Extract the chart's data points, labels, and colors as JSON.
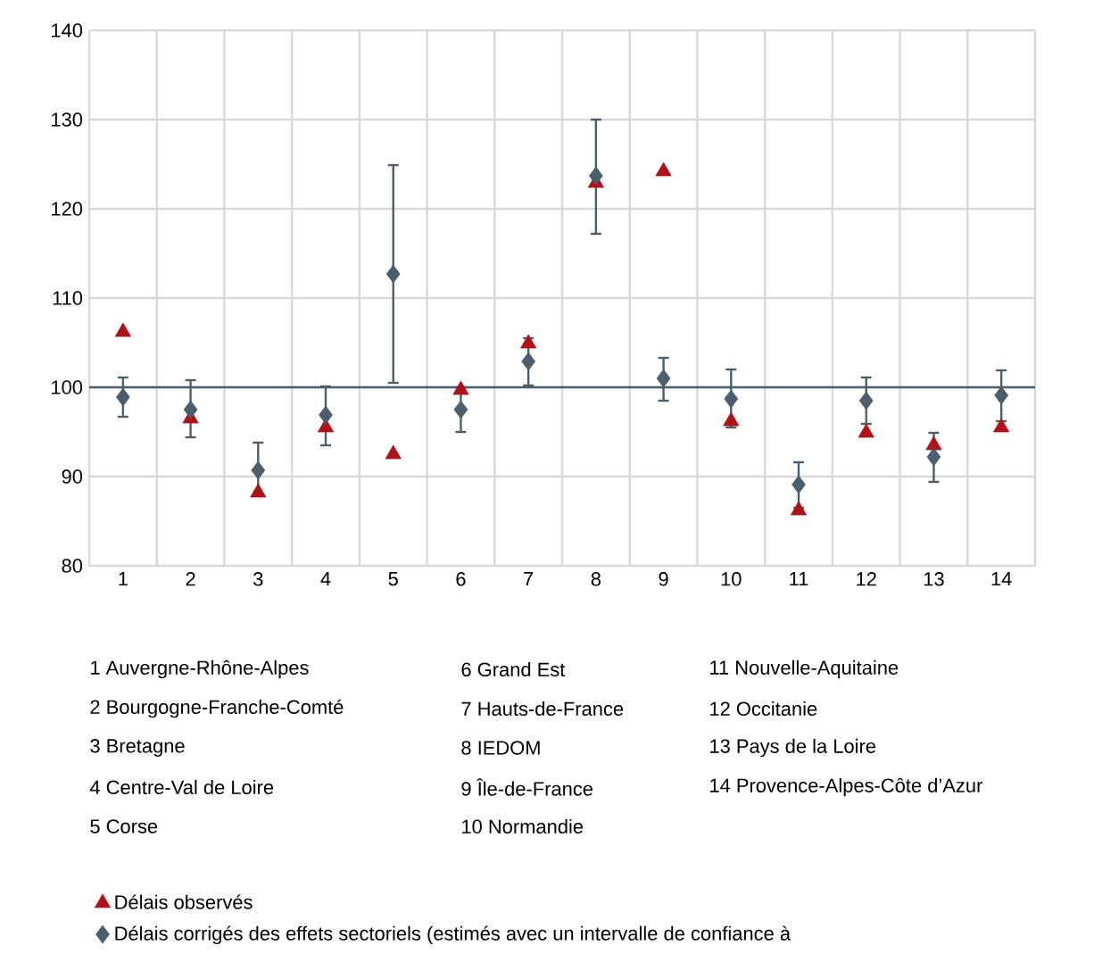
{
  "chart_data": {
    "type": "scatter",
    "categories": [
      "1",
      "2",
      "3",
      "4",
      "5",
      "6",
      "7",
      "8",
      "9",
      "10",
      "11",
      "12",
      "13",
      "14"
    ],
    "series": [
      {
        "name": "Délais observés",
        "color": "#b01116",
        "marker": "triangle",
        "values": [
          106.2,
          96.5,
          88.2,
          95.5,
          92.5,
          99.7,
          104.9,
          122.9,
          124.2,
          96.2,
          86.2,
          94.9,
          93.5,
          95.5
        ]
      },
      {
        "name": "Délais corrigés des effets sectoriels (estimés avec un intervalle de confiance à",
        "color": "#4a5e6d",
        "marker": "diamond",
        "values": [
          98.9,
          97.5,
          90.7,
          96.9,
          112.7,
          97.5,
          102.9,
          123.7,
          101,
          98.7,
          89.1,
          98.5,
          92.2,
          99.1
        ],
        "errors": [
          [
            96.7,
            101.1
          ],
          [
            94.4,
            100.8
          ],
          [
            88,
            93.8
          ],
          [
            93.5,
            100.1
          ],
          [
            100.5,
            124.9
          ],
          [
            95,
            100
          ],
          [
            100.2,
            105.5
          ],
          [
            117.2,
            130
          ],
          [
            98.5,
            103.3
          ],
          [
            95.5,
            102
          ],
          [
            86.5,
            91.6
          ],
          [
            95.9,
            101.1
          ],
          [
            89.4,
            94.9
          ],
          [
            96.2,
            101.9
          ]
        ]
      }
    ],
    "ylim": [
      80,
      140
    ],
    "yticks": [
      80,
      90,
      100,
      110,
      120,
      130,
      140
    ],
    "grid": true,
    "legend": "bottom left",
    "ref_lines": [
      {
        "axis": "y",
        "value": 100,
        "color": "#4a5e6d"
      }
    ],
    "annotations": [
      "1 Auvergne-Rhône-Alpes",
      "2 Bourgogne-Franche-Comté",
      "3 Bretagne",
      "4 Centre-Val de Loire",
      "5 Corse",
      "6 Grand Est",
      "7 Hauts-de-France",
      "8 IEDOM",
      "9 Île-de-France",
      "10 Normandie",
      "11 Nouvelle-Aquitaine",
      "12 Occitanie",
      "13 Pays de la Loire",
      "14 Provence-Alpes-Côte d’Azur"
    ]
  }
}
